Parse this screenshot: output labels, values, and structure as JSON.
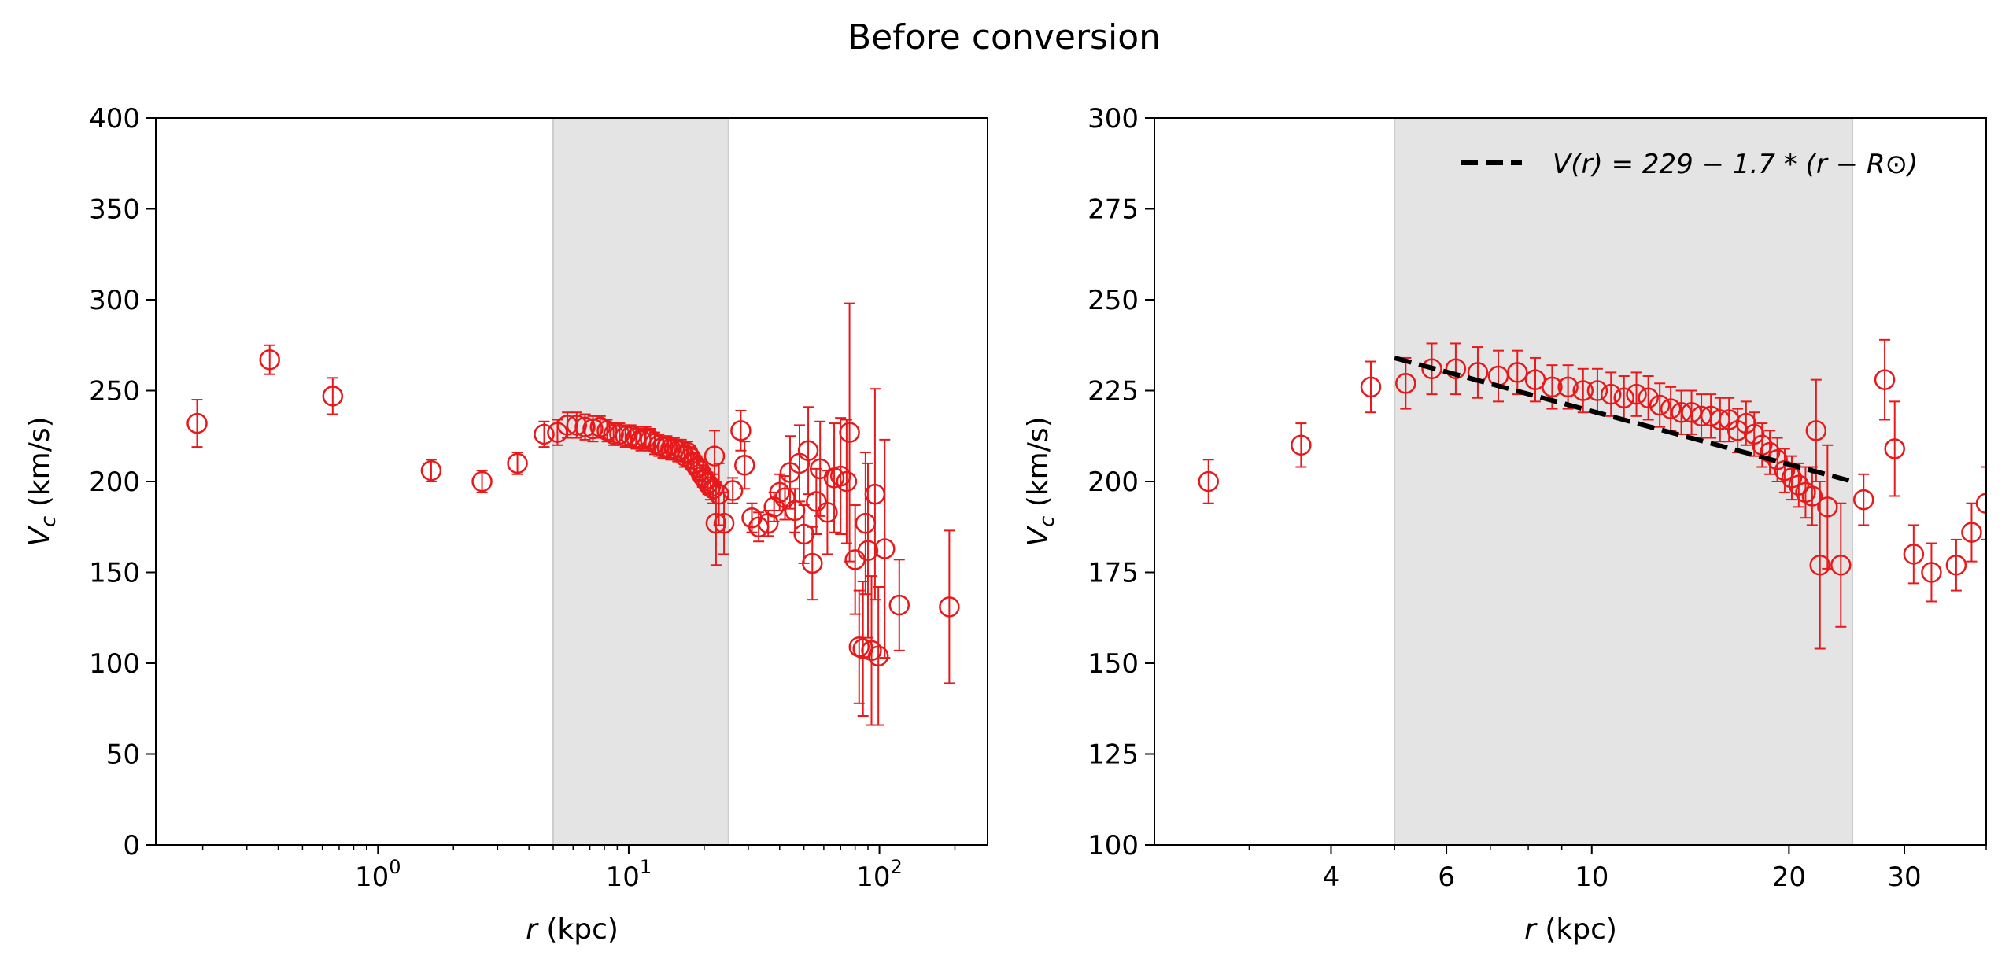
{
  "figure": {
    "title": "Before conversion"
  },
  "chart_data": [
    {
      "type": "scatter",
      "marker": "open-circle",
      "color": "#e8191b",
      "xscale": "log",
      "xlim": [
        0.13,
        270
      ],
      "ylim": [
        0,
        400
      ],
      "xlabel": "r (kpc)",
      "xlabel_var": "r",
      "xlabel_unit": " (kpc)",
      "ylabel_var": "V",
      "ylabel_sub": "c",
      "ylabel_unit": " (km/s)",
      "yticks": [
        "0",
        "50",
        "100",
        "150",
        "200",
        "250",
        "300",
        "350",
        "400"
      ],
      "xticks": [
        {
          "base": "10",
          "exp": "0",
          "value": 1
        },
        {
          "base": "10",
          "exp": "1",
          "value": 10
        },
        {
          "base": "10",
          "exp": "2",
          "value": 100
        }
      ],
      "shaded_region": {
        "x0": 5,
        "x1": 25,
        "color": "#e4e4e4"
      },
      "grid": false,
      "series": [
        {
          "points": [
            {
              "x": 0.19,
              "y": 232,
              "err": 13
            },
            {
              "x": 0.37,
              "y": 267,
              "err": 8
            },
            {
              "x": 0.66,
              "y": 247,
              "err": 10
            },
            {
              "x": 1.63,
              "y": 206,
              "err": 6
            },
            {
              "x": 2.6,
              "y": 200,
              "err": 6
            },
            {
              "x": 3.6,
              "y": 210,
              "err": 6
            },
            {
              "x": 4.6,
              "y": 226,
              "err": 7
            },
            {
              "x": 5.2,
              "y": 227,
              "err": 7
            },
            {
              "x": 5.7,
              "y": 231,
              "err": 7
            },
            {
              "x": 6.2,
              "y": 231,
              "err": 7
            },
            {
              "x": 6.7,
              "y": 230,
              "err": 7
            },
            {
              "x": 7.2,
              "y": 229,
              "err": 7
            },
            {
              "x": 7.7,
              "y": 230,
              "err": 6
            },
            {
              "x": 8.2,
              "y": 228,
              "err": 6
            },
            {
              "x": 8.7,
              "y": 226,
              "err": 6
            },
            {
              "x": 9.2,
              "y": 226,
              "err": 6
            },
            {
              "x": 9.7,
              "y": 225,
              "err": 6
            },
            {
              "x": 10.2,
              "y": 225,
              "err": 6
            },
            {
              "x": 10.7,
              "y": 224,
              "err": 6
            },
            {
              "x": 11.2,
              "y": 223,
              "err": 6
            },
            {
              "x": 11.7,
              "y": 224,
              "err": 6
            },
            {
              "x": 12.2,
              "y": 223,
              "err": 6
            },
            {
              "x": 12.7,
              "y": 221,
              "err": 6
            },
            {
              "x": 13.2,
              "y": 220,
              "err": 6
            },
            {
              "x": 13.7,
              "y": 219,
              "err": 6
            },
            {
              "x": 14.2,
              "y": 219,
              "err": 6
            },
            {
              "x": 14.7,
              "y": 218,
              "err": 6
            },
            {
              "x": 15.2,
              "y": 218,
              "err": 6
            },
            {
              "x": 15.7,
              "y": 217,
              "err": 6
            },
            {
              "x": 16.2,
              "y": 217,
              "err": 6
            },
            {
              "x": 16.7,
              "y": 214,
              "err": 6
            },
            {
              "x": 17.2,
              "y": 216,
              "err": 6
            },
            {
              "x": 17.7,
              "y": 213,
              "err": 6
            },
            {
              "x": 18.2,
              "y": 210,
              "err": 6
            },
            {
              "x": 18.7,
              "y": 208,
              "err": 6
            },
            {
              "x": 19.2,
              "y": 206,
              "err": 6
            },
            {
              "x": 19.7,
              "y": 203,
              "err": 6
            },
            {
              "x": 20.2,
              "y": 201,
              "err": 6
            },
            {
              "x": 20.7,
              "y": 199,
              "err": 6
            },
            {
              "x": 21.2,
              "y": 197,
              "err": 7
            },
            {
              "x": 21.7,
              "y": 196,
              "err": 8
            },
            {
              "x": 22.0,
              "y": 214,
              "err": 14
            },
            {
              "x": 22.3,
              "y": 177,
              "err": 23
            },
            {
              "x": 22.9,
              "y": 193,
              "err": 17
            },
            {
              "x": 24.0,
              "y": 177,
              "err": 17
            },
            {
              "x": 26.0,
              "y": 195,
              "err": 7
            },
            {
              "x": 28.0,
              "y": 228,
              "err": 11
            },
            {
              "x": 29.0,
              "y": 209,
              "err": 13
            },
            {
              "x": 31.0,
              "y": 180,
              "err": 8
            },
            {
              "x": 33.0,
              "y": 175,
              "err": 8
            },
            {
              "x": 36.0,
              "y": 177,
              "err": 7
            },
            {
              "x": 38.0,
              "y": 186,
              "err": 8
            },
            {
              "x": 40.0,
              "y": 194,
              "err": 10
            },
            {
              "x": 42.0,
              "y": 191,
              "err": 12
            },
            {
              "x": 44.0,
              "y": 205,
              "err": 20
            },
            {
              "x": 46.0,
              "y": 184,
              "err": 12
            },
            {
              "x": 48.0,
              "y": 210,
              "err": 21
            },
            {
              "x": 50.0,
              "y": 171,
              "err": 16
            },
            {
              "x": 52.0,
              "y": 217,
              "err": 24
            },
            {
              "x": 54.0,
              "y": 155,
              "err": 20
            },
            {
              "x": 56.0,
              "y": 189,
              "err": 18
            },
            {
              "x": 58.0,
              "y": 207,
              "err": 26
            },
            {
              "x": 62.0,
              "y": 183,
              "err": 23
            },
            {
              "x": 66.0,
              "y": 202,
              "err": 30
            },
            {
              "x": 70.0,
              "y": 203,
              "err": 32
            },
            {
              "x": 74.0,
              "y": 200,
              "err": 34
            },
            {
              "x": 76.0,
              "y": 227,
              "err": 71
            },
            {
              "x": 80.0,
              "y": 157,
              "err": 30
            },
            {
              "x": 83.0,
              "y": 109,
              "err": 31
            },
            {
              "x": 86.0,
              "y": 108,
              "err": 37
            },
            {
              "x": 88.0,
              "y": 177,
              "err": 39
            },
            {
              "x": 90.0,
              "y": 162,
              "err": 48
            },
            {
              "x": 93.0,
              "y": 107,
              "err": 41
            },
            {
              "x": 96.0,
              "y": 193,
              "err": 58
            },
            {
              "x": 99.0,
              "y": 104,
              "err": 38
            },
            {
              "x": 105.0,
              "y": 163,
              "err": 60
            },
            {
              "x": 120.0,
              "y": 132,
              "err": 25
            },
            {
              "x": 190.0,
              "y": 131,
              "err": 42
            }
          ]
        }
      ]
    },
    {
      "type": "scatter",
      "marker": "open-circle",
      "color": "#e8191b",
      "xscale": "log",
      "xlim": [
        2.15,
        40
      ],
      "ylim": [
        100,
        300
      ],
      "xlabel": "r (kpc)",
      "xlabel_var": "r",
      "xlabel_unit": " (kpc)",
      "ylabel_var": "V",
      "ylabel_sub": "c",
      "ylabel_unit": " (km/s)",
      "yticks": [
        "100",
        "125",
        "150",
        "175",
        "200",
        "225",
        "250",
        "275",
        "300"
      ],
      "xticks": [
        {
          "label": "4",
          "value": 4
        },
        {
          "label": "6",
          "value": 6
        },
        {
          "label": "10",
          "value": 10
        },
        {
          "label": "20",
          "value": 20
        },
        {
          "label": "30",
          "value": 30
        }
      ],
      "shaded_region": {
        "x0": 5,
        "x1": 25,
        "color": "#e4e4e4"
      },
      "grid": false,
      "legend": {
        "position": "top-right",
        "entry": "V(r) = 229 − 1.7 * (r − R⊙)"
      },
      "fit_line": {
        "name": "V(r) = 229 − 1.7 * (r − R⊙)",
        "style": "dashed",
        "color": "#000000",
        "x": [
          5,
          25
        ],
        "y": [
          234,
          200
        ]
      },
      "series_ref": "same points as left panel"
    }
  ]
}
